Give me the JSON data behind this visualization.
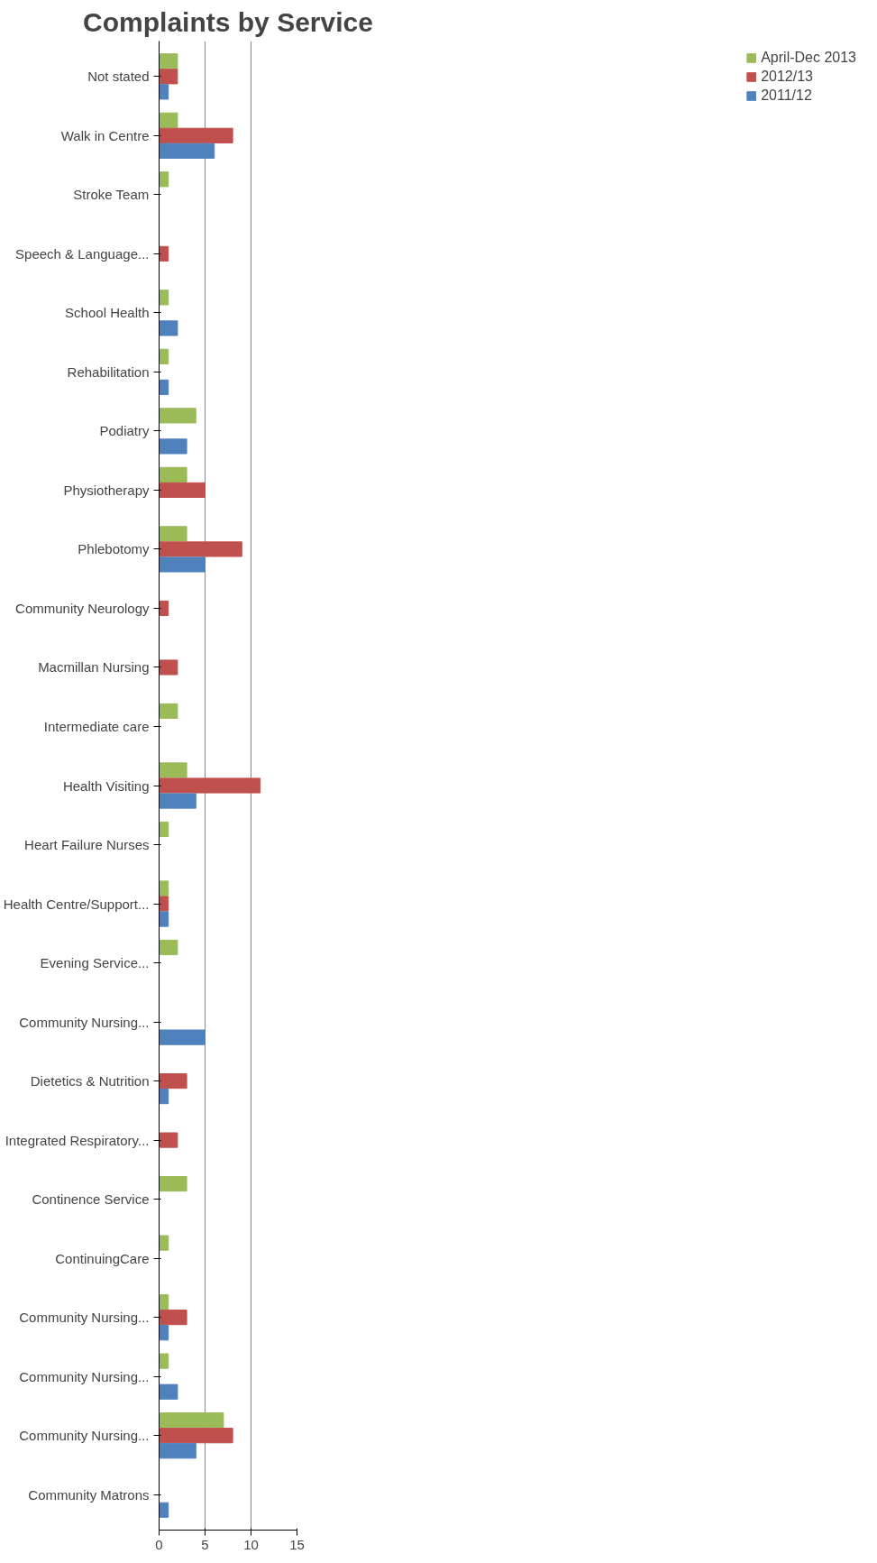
{
  "chart_data": {
    "type": "bar",
    "orientation": "horizontal",
    "title": "Complaints by Service",
    "categories": [
      "Not stated",
      "Walk in Centre",
      "Stroke Team",
      "Speech & Language...",
      "School Health",
      "Rehabilitation",
      "Podiatry",
      "Physiotherapy",
      "Phlebotomy",
      "Community Neurology",
      "Macmillan Nursing",
      "Intermediate care",
      "Health Visiting",
      "Heart Failure Nurses",
      "Health Centre/Support...",
      "Evening Service...",
      "Community Nursing...",
      "Dietetics & Nutrition",
      "Integrated Respiratory...",
      "Continence Service",
      "ContinuingCare",
      "Community Nursing...",
      "Community Nursing...",
      "Community Nursing...",
      "Community Matrons"
    ],
    "series": [
      {
        "name": "April-Dec 2013",
        "color": "#9bbb59",
        "values": [
          2,
          2,
          1,
          0,
          1,
          1,
          4,
          3,
          3,
          0,
          0,
          2,
          3,
          1,
          1,
          2,
          0,
          0,
          0,
          3,
          1,
          1,
          1,
          7,
          0
        ]
      },
      {
        "name": "2012/13",
        "color": "#c0504d",
        "values": [
          2,
          8,
          0,
          1,
          0,
          0,
          0,
          5,
          9,
          1,
          2,
          0,
          11,
          0,
          1,
          0,
          0,
          3,
          2,
          0,
          0,
          3,
          0,
          8,
          0
        ]
      },
      {
        "name": "2011/12",
        "color": "#4f81bd",
        "values": [
          1,
          6,
          0,
          0,
          2,
          1,
          3,
          0,
          5,
          0,
          0,
          0,
          4,
          0,
          1,
          0,
          5,
          1,
          0,
          0,
          0,
          1,
          2,
          4,
          1
        ]
      }
    ],
    "xlim": [
      0,
      15
    ],
    "xticks": [
      0,
      5,
      10,
      15
    ],
    "grid": "x",
    "legend": "right"
  }
}
